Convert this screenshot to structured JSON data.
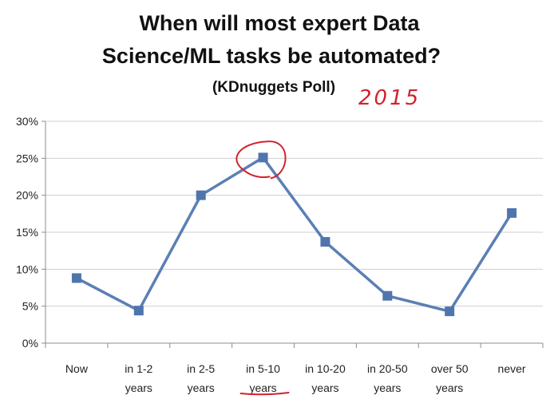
{
  "chart_data": {
    "type": "line",
    "title_lines": [
      "When will most expert Data",
      "Science/ML tasks be automated?"
    ],
    "subtitle": "(KDnuggets Poll)",
    "annotation": "2015",
    "categories": [
      [
        "Now"
      ],
      [
        "in 1-2",
        "years"
      ],
      [
        "in 2-5",
        "years"
      ],
      [
        "in 5-10",
        "years"
      ],
      [
        "in 10-20",
        "years"
      ],
      [
        "in 20-50",
        "years"
      ],
      [
        "over 50",
        "years"
      ],
      [
        "never"
      ]
    ],
    "series": [
      {
        "values": [
          0.088,
          0.044,
          0.2,
          0.251,
          0.137,
          0.064,
          0.043,
          0.176
        ]
      }
    ],
    "yticks": [
      "0%",
      "5%",
      "10%",
      "15%",
      "20%",
      "25%",
      "30%"
    ],
    "ylim": [
      0,
      0.3
    ],
    "grid": true,
    "legend": "none",
    "highlight_index": 3,
    "colors": {
      "line": "#5b7fb5",
      "marker": "#4f75ad",
      "grid": "#cfcfcf",
      "axis": "#8c8c8c",
      "annotation": "#d2222d"
    }
  }
}
